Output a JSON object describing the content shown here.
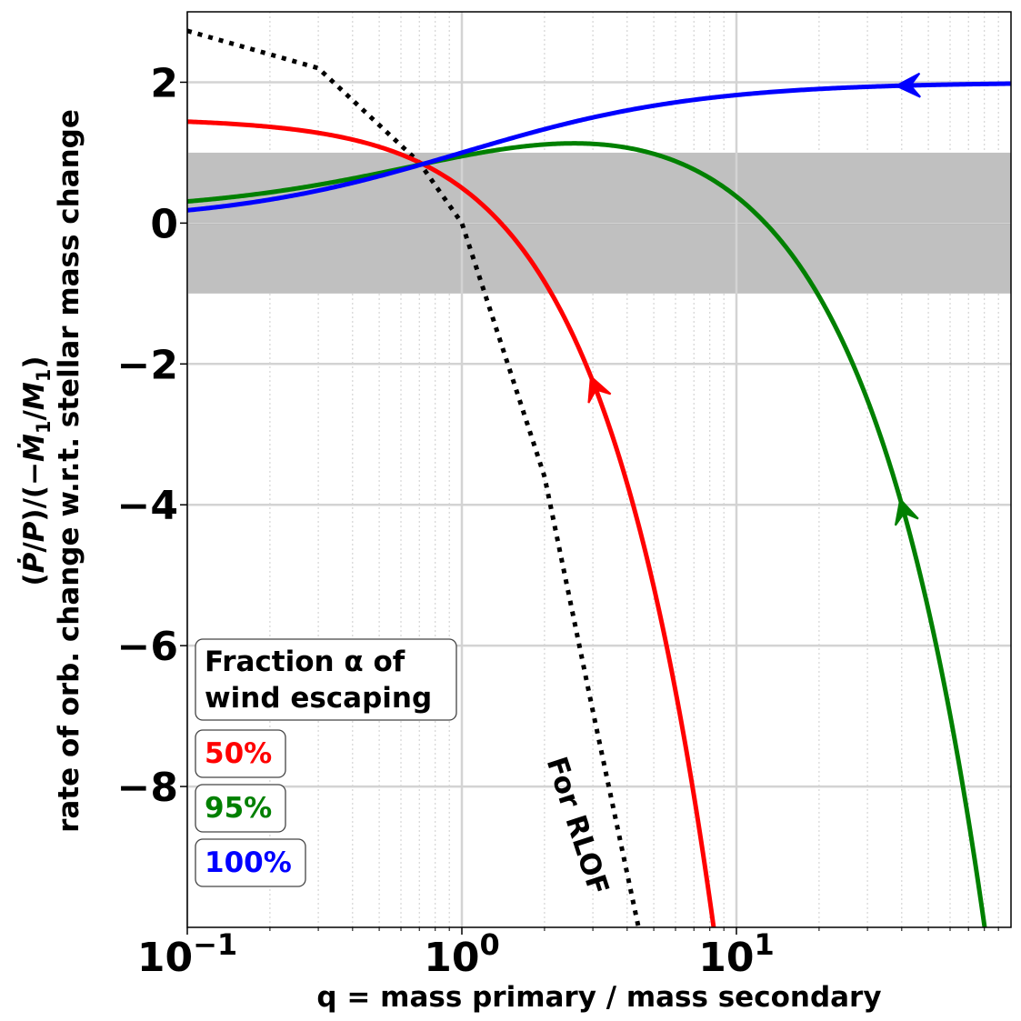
{
  "chart_data": {
    "type": "line",
    "xscale": "log",
    "xlim": [
      0.1,
      100
    ],
    "ylim": [
      -10,
      3
    ],
    "xlabel": "q = mass primary / mass secondary",
    "ylabel_line1": "(Ṗ/P)/(−Ṁ1/M1)",
    "ylabel_line2": "rate of orb. change w.r.t. stellar mass change",
    "x_ticks": [
      {
        "value": 0.1,
        "base": "10",
        "exp": "−1"
      },
      {
        "value": 1,
        "base": "10",
        "exp": "0"
      },
      {
        "value": 10,
        "base": "10",
        "exp": "1"
      }
    ],
    "y_ticks": [
      {
        "value": 2,
        "label": "2"
      },
      {
        "value": 0,
        "label": "0"
      },
      {
        "value": -2,
        "label": "−2"
      },
      {
        "value": -4,
        "label": "−4"
      },
      {
        "value": -6,
        "label": "−6"
      },
      {
        "value": -8,
        "label": "−8"
      }
    ],
    "shaded_band": {
      "ymin": -1,
      "ymax": 1,
      "color": "#c0c0c0"
    },
    "zero_line": {
      "y": 0,
      "color": "#000000"
    },
    "series": [
      {
        "name": "50%",
        "alpha": 0.5,
        "color": "#ff0000",
        "style": "solid",
        "arrow_at_x": 3.0
      },
      {
        "name": "95%",
        "alpha": 0.95,
        "color": "#008000",
        "style": "solid",
        "arrow_at_x": 40.0
      },
      {
        "name": "100%",
        "alpha": 1.0,
        "color": "#0000ff",
        "style": "solid",
        "arrow_at_x": 40.0
      },
      {
        "name": "For RLOF",
        "color": "#000000",
        "style": "dotted",
        "sample_points": [
          [
            0.1,
            2.73
          ],
          [
            0.3,
            2.2
          ],
          [
            0.7,
            0.86
          ],
          [
            1.0,
            0.0
          ],
          [
            2.0,
            -3.6
          ],
          [
            3.0,
            -6.93
          ],
          [
            4.4,
            -10.0
          ]
        ]
      }
    ],
    "annotations": [
      {
        "text": "For RLOF",
        "x": 2.45,
        "y": -8.6,
        "rotation_deg": 72
      }
    ],
    "legend_title": "Fraction α of wind escaping",
    "legend_title_line1": "Fraction α of",
    "legend_title_line2": "wind escaping",
    "legend_entries": [
      {
        "label": "50%",
        "color": "#ff0000"
      },
      {
        "label": "95%",
        "color": "#008000"
      },
      {
        "label": "100%",
        "color": "#0000ff"
      }
    ],
    "legend_position": "bottom-left"
  }
}
